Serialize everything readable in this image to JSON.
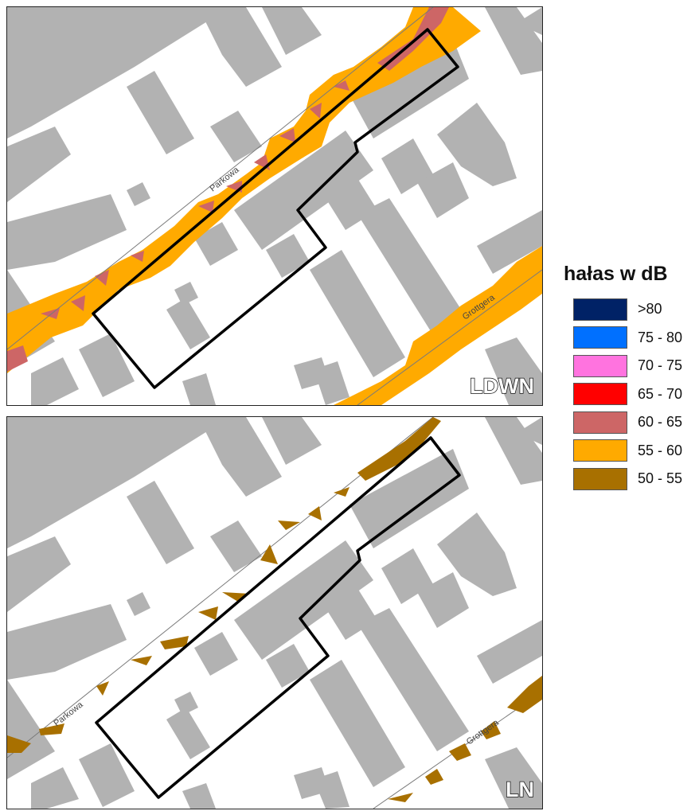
{
  "legend": {
    "title": "hałas w dB",
    "items": [
      {
        "label": ">80",
        "color": "#002266"
      },
      {
        "label": "75 - 80",
        "color": "#0070ff"
      },
      {
        "label": "70 - 75",
        "color": "#ff73df"
      },
      {
        "label": "65 - 70",
        "color": "#ff0000"
      },
      {
        "label": "60 - 65",
        "color": "#cd6666"
      },
      {
        "label": "55 - 60",
        "color": "#ffaa00"
      },
      {
        "label": "50 - 55",
        "color": "#a87000"
      }
    ]
  },
  "map_top": {
    "label": "LDWN",
    "street_parkowa": "Parkowa",
    "street_grottgera": "Grottgera"
  },
  "map_bottom": {
    "label": "LN",
    "street_parkowa": "Parkowa",
    "street_grottgera": "Grottgera"
  },
  "colors": {
    "building": "#b2b2b2",
    "land": "#ffffff",
    "road_line": "#7a7a7a",
    "boundary": "#000000"
  }
}
